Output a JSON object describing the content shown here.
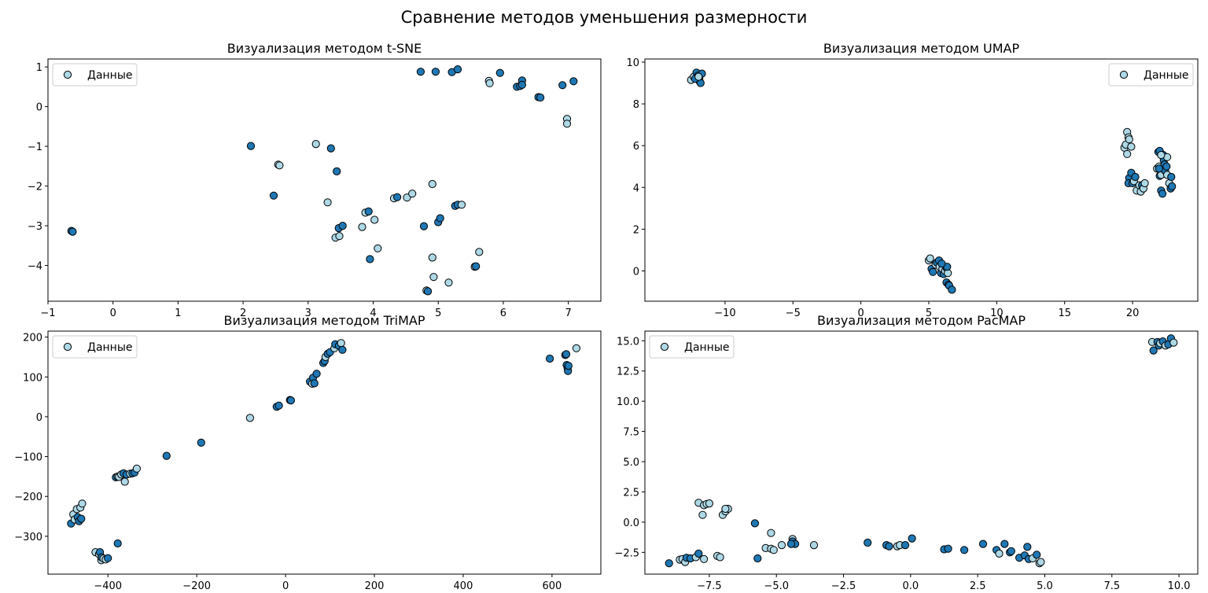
{
  "suptitle": "Сравнение методов уменьшения размерности",
  "colors": {
    "light": "#add8e6",
    "dark": "#1f77b4",
    "edge": "#000000"
  },
  "chart_data": [
    {
      "type": "scatter",
      "title": "Визуализация методом t-SNE",
      "legend": "Данные",
      "legend_loc": "upper-left",
      "xlim": [
        -1.0,
        7.5
      ],
      "ylim": [
        -4.9,
        1.2
      ],
      "xticks": [
        -1,
        0,
        1,
        2,
        3,
        4,
        5,
        6,
        7
      ],
      "yticks": [
        -4,
        -3,
        -2,
        -1,
        0,
        1
      ],
      "points": [
        [
          -0.64,
          -3.13,
          1
        ],
        [
          -0.62,
          -3.15,
          1
        ],
        [
          2.12,
          -0.99,
          1
        ],
        [
          2.47,
          -2.24,
          1
        ],
        [
          2.54,
          -1.46,
          0
        ],
        [
          2.56,
          -1.48,
          0
        ],
        [
          3.12,
          -0.94,
          0
        ],
        [
          3.3,
          -2.41,
          0
        ],
        [
          3.35,
          -1.05,
          1
        ],
        [
          3.44,
          -1.63,
          1
        ],
        [
          3.42,
          -3.3,
          0
        ],
        [
          3.48,
          -3.26,
          0
        ],
        [
          3.47,
          -3.06,
          1
        ],
        [
          3.53,
          -3.0,
          1
        ],
        [
          3.83,
          -3.03,
          0
        ],
        [
          3.88,
          -2.67,
          0
        ],
        [
          3.93,
          -2.64,
          1
        ],
        [
          3.95,
          -3.84,
          1
        ],
        [
          4.02,
          -2.85,
          0
        ],
        [
          4.07,
          -3.57,
          0
        ],
        [
          4.32,
          -2.31,
          0
        ],
        [
          4.37,
          -2.28,
          1
        ],
        [
          4.52,
          -2.29,
          0
        ],
        [
          4.6,
          -2.19,
          0
        ],
        [
          4.73,
          0.88,
          1
        ],
        [
          4.78,
          -3.01,
          1
        ],
        [
          4.82,
          -4.63,
          0
        ],
        [
          4.84,
          -4.65,
          1
        ],
        [
          4.91,
          -1.95,
          0
        ],
        [
          4.91,
          -3.8,
          0
        ],
        [
          4.93,
          -4.29,
          0
        ],
        [
          4.96,
          0.88,
          1
        ],
        [
          5.0,
          -2.91,
          1
        ],
        [
          5.03,
          -2.81,
          1
        ],
        [
          5.16,
          -4.43,
          0
        ],
        [
          5.21,
          0.87,
          1
        ],
        [
          5.26,
          -2.5,
          1
        ],
        [
          5.3,
          -2.47,
          1
        ],
        [
          5.3,
          0.94,
          1
        ],
        [
          5.36,
          -2.47,
          0
        ],
        [
          5.56,
          -4.03,
          0
        ],
        [
          5.58,
          -4.02,
          1
        ],
        [
          5.63,
          -3.66,
          0
        ],
        [
          5.78,
          0.65,
          0
        ],
        [
          5.79,
          0.59,
          0
        ],
        [
          5.95,
          0.85,
          1
        ],
        [
          6.21,
          0.5,
          1
        ],
        [
          6.26,
          0.52,
          1
        ],
        [
          6.29,
          0.66,
          1
        ],
        [
          6.29,
          0.55,
          1
        ],
        [
          6.54,
          0.24,
          1
        ],
        [
          6.57,
          0.23,
          1
        ],
        [
          6.91,
          0.54,
          1
        ],
        [
          6.98,
          -0.31,
          0
        ],
        [
          6.98,
          -0.43,
          0
        ],
        [
          7.08,
          0.64,
          1
        ]
      ]
    },
    {
      "type": "scatter",
      "title": "Визуализация методом UMAP",
      "legend": "Данные",
      "legend_loc": "upper-right",
      "xlim": [
        -15.9,
        24.8
      ],
      "ylim": [
        -1.45,
        10.15
      ],
      "xticks": [
        -10,
        -5,
        0,
        5,
        10,
        15,
        20
      ],
      "yticks": [
        0,
        2,
        4,
        6,
        8,
        10
      ],
      "points": [
        [
          -12.5,
          9.15,
          0
        ],
        [
          -12.3,
          9.3,
          0
        ],
        [
          -12.1,
          9.5,
          1
        ],
        [
          -12.0,
          9.35,
          1
        ],
        [
          -11.9,
          9.2,
          0
        ],
        [
          -11.85,
          9.05,
          1
        ],
        [
          -11.8,
          9.0,
          1
        ],
        [
          -11.7,
          9.45,
          1
        ],
        [
          -12.2,
          9.2,
          1
        ],
        [
          -11.95,
          9.3,
          0
        ],
        [
          5.0,
          0.5,
          0
        ],
        [
          5.1,
          0.6,
          0
        ],
        [
          5.2,
          0.1,
          1
        ],
        [
          5.3,
          -0.05,
          1
        ],
        [
          5.5,
          0.3,
          0
        ],
        [
          5.6,
          0.4,
          1
        ],
        [
          5.75,
          0.5,
          1
        ],
        [
          5.8,
          0.2,
          0
        ],
        [
          5.9,
          -0.1,
          1
        ],
        [
          6.0,
          0.1,
          0
        ],
        [
          6.1,
          -0.15,
          1
        ],
        [
          6.2,
          0.0,
          0
        ],
        [
          6.3,
          0.15,
          1
        ],
        [
          6.4,
          -0.1,
          0
        ],
        [
          6.3,
          -0.55,
          1
        ],
        [
          6.45,
          -0.65,
          1
        ],
        [
          6.5,
          -0.7,
          1
        ],
        [
          6.7,
          -0.9,
          1
        ],
        [
          6.35,
          0.2,
          1
        ],
        [
          5.95,
          0.35,
          1
        ],
        [
          19.4,
          5.9,
          0
        ],
        [
          19.5,
          6.05,
          0
        ],
        [
          19.6,
          5.6,
          0
        ],
        [
          19.6,
          6.65,
          0
        ],
        [
          19.7,
          6.4,
          0
        ],
        [
          19.75,
          6.3,
          0
        ],
        [
          19.9,
          5.95,
          0
        ],
        [
          19.75,
          4.45,
          1
        ],
        [
          19.7,
          4.2,
          1
        ],
        [
          19.9,
          4.7,
          1
        ],
        [
          20.0,
          4.2,
          1
        ],
        [
          20.1,
          4.3,
          0
        ],
        [
          20.2,
          4.5,
          1
        ],
        [
          20.3,
          3.85,
          0
        ],
        [
          20.5,
          4.1,
          0
        ],
        [
          20.6,
          3.8,
          0
        ],
        [
          20.7,
          4.1,
          1
        ],
        [
          20.8,
          3.95,
          0
        ],
        [
          20.9,
          4.2,
          0
        ],
        [
          21.8,
          4.9,
          0
        ],
        [
          21.9,
          5.7,
          1
        ],
        [
          21.95,
          5.0,
          0
        ],
        [
          22.0,
          5.75,
          1
        ],
        [
          22.0,
          4.55,
          1
        ],
        [
          22.1,
          4.6,
          0
        ],
        [
          22.1,
          3.85,
          1
        ],
        [
          22.2,
          3.7,
          1
        ],
        [
          22.25,
          5.55,
          1
        ],
        [
          22.3,
          5.3,
          1
        ],
        [
          22.35,
          5.1,
          1
        ],
        [
          22.4,
          4.8,
          1
        ],
        [
          22.5,
          5.0,
          1
        ],
        [
          22.55,
          5.45,
          0
        ],
        [
          22.55,
          4.6,
          0
        ],
        [
          22.7,
          4.2,
          0
        ],
        [
          22.8,
          3.95,
          1
        ],
        [
          22.85,
          4.5,
          1
        ],
        [
          22.9,
          4.05,
          1
        ],
        [
          21.95,
          4.9,
          1
        ],
        [
          22.1,
          5.55,
          0
        ]
      ]
    },
    {
      "type": "scatter",
      "title": "Визуализация методом TriMAP",
      "legend": "Данные",
      "legend_loc": "upper-left",
      "xlim": [
        -535,
        710
      ],
      "ylim": [
        -395,
        215
      ],
      "xticks": [
        -400,
        -200,
        0,
        200,
        400,
        600
      ],
      "yticks": [
        -300,
        -200,
        -100,
        0,
        100,
        200
      ],
      "points": [
        [
          -483,
          -268,
          1
        ],
        [
          -478,
          -245,
          0
        ],
        [
          -475,
          -258,
          0
        ],
        [
          -470,
          -232,
          0
        ],
        [
          -468,
          -252,
          1
        ],
        [
          -465,
          -262,
          1
        ],
        [
          -462,
          -228,
          0
        ],
        [
          -458,
          -218,
          0
        ],
        [
          -460,
          -256,
          1
        ],
        [
          -428,
          -340,
          0
        ],
        [
          -420,
          -345,
          0
        ],
        [
          -418,
          -340,
          1
        ],
        [
          -415,
          -360,
          0
        ],
        [
          -414,
          -353,
          1
        ],
        [
          -410,
          -356,
          0
        ],
        [
          -405,
          -358,
          0
        ],
        [
          -400,
          -355,
          1
        ],
        [
          -382,
          -152,
          1
        ],
        [
          -378,
          -150,
          0
        ],
        [
          -375,
          -151,
          0
        ],
        [
          -370,
          -145,
          0
        ],
        [
          -365,
          -142,
          1
        ],
        [
          -362,
          -163,
          0
        ],
        [
          -358,
          -145,
          1
        ],
        [
          -350,
          -143,
          0
        ],
        [
          -345,
          -142,
          1
        ],
        [
          -340,
          -140,
          1
        ],
        [
          -335,
          -130,
          0
        ],
        [
          -378,
          -318,
          1
        ],
        [
          -268,
          -98,
          1
        ],
        [
          -190,
          -65,
          1
        ],
        [
          -80,
          -3,
          0
        ],
        [
          -20,
          25,
          1
        ],
        [
          -15,
          28,
          1
        ],
        [
          10,
          42,
          1
        ],
        [
          12,
          41,
          1
        ],
        [
          55,
          88,
          1
        ],
        [
          60,
          83,
          0
        ],
        [
          62,
          98,
          1
        ],
        [
          65,
          84,
          1
        ],
        [
          70,
          108,
          1
        ],
        [
          85,
          135,
          1
        ],
        [
          88,
          140,
          1
        ],
        [
          90,
          150,
          0
        ],
        [
          95,
          158,
          1
        ],
        [
          100,
          162,
          1
        ],
        [
          110,
          172,
          0
        ],
        [
          112,
          182,
          1
        ],
        [
          120,
          178,
          1
        ],
        [
          125,
          185,
          0
        ],
        [
          128,
          168,
          1
        ],
        [
          595,
          146,
          1
        ],
        [
          630,
          155,
          1
        ],
        [
          632,
          157,
          1
        ],
        [
          633,
          130,
          1
        ],
        [
          635,
          122,
          1
        ],
        [
          636,
          115,
          1
        ],
        [
          637,
          128,
          1
        ],
        [
          655,
          172,
          0
        ]
      ]
    },
    {
      "type": "scatter",
      "title": "Визуализация методом PacMAP",
      "legend": "Данные",
      "legend_loc": "upper-left",
      "xlim": [
        -9.9,
        10.7
      ],
      "ylim": [
        -4.3,
        15.8
      ],
      "xticks": [
        -7.5,
        -5.0,
        -2.5,
        0.0,
        2.5,
        5.0,
        7.5,
        10.0
      ],
      "yticks": [
        -2.5,
        0.0,
        2.5,
        5.0,
        7.5,
        10.0,
        12.5,
        15.0
      ],
      "points": [
        [
          -9.0,
          -3.4,
          1
        ],
        [
          -8.6,
          -3.1,
          0
        ],
        [
          -8.5,
          -3.05,
          0
        ],
        [
          -8.4,
          -3.3,
          0
        ],
        [
          -8.35,
          -2.95,
          1
        ],
        [
          -8.2,
          -3.0,
          1
        ],
        [
          -8.0,
          -2.9,
          0
        ],
        [
          -7.9,
          -2.6,
          1
        ],
        [
          -7.9,
          1.6,
          0
        ],
        [
          -7.7,
          1.4,
          0
        ],
        [
          -7.75,
          0.6,
          0
        ],
        [
          -7.6,
          1.5,
          0
        ],
        [
          -7.5,
          1.55,
          0
        ],
        [
          -7.7,
          -3.05,
          0
        ],
        [
          -7.2,
          -2.8,
          0
        ],
        [
          -7.1,
          -2.9,
          0
        ],
        [
          -7.0,
          0.6,
          0
        ],
        [
          -6.9,
          0.9,
          0
        ],
        [
          -6.8,
          1.1,
          0
        ],
        [
          -6.9,
          1.1,
          0
        ],
        [
          -5.8,
          -0.1,
          1
        ],
        [
          -5.7,
          -3.0,
          1
        ],
        [
          -5.2,
          -0.9,
          0
        ],
        [
          -5.4,
          -2.15,
          0
        ],
        [
          -5.2,
          -2.2,
          0
        ],
        [
          -5.1,
          -2.3,
          0
        ],
        [
          -4.8,
          -1.9,
          0
        ],
        [
          -4.4,
          -1.4,
          0
        ],
        [
          -4.4,
          -1.6,
          1
        ],
        [
          -4.3,
          -1.8,
          1
        ],
        [
          -4.45,
          -1.8,
          1
        ],
        [
          -3.6,
          -1.9,
          0
        ],
        [
          -1.6,
          -1.7,
          1
        ],
        [
          -0.9,
          -1.9,
          1
        ],
        [
          -0.8,
          -2.0,
          1
        ],
        [
          -0.5,
          -2.0,
          0
        ],
        [
          -0.4,
          -1.9,
          0
        ],
        [
          -0.2,
          -1.9,
          1
        ],
        [
          0.05,
          -1.35,
          1
        ],
        [
          1.25,
          -2.25,
          1
        ],
        [
          1.4,
          -2.2,
          1
        ],
        [
          2.0,
          -2.3,
          1
        ],
        [
          2.7,
          -1.8,
          1
        ],
        [
          3.2,
          -2.3,
          1
        ],
        [
          3.3,
          -2.6,
          0
        ],
        [
          3.5,
          -1.8,
          1
        ],
        [
          3.7,
          -2.5,
          1
        ],
        [
          3.75,
          -2.4,
          1
        ],
        [
          4.05,
          -2.95,
          1
        ],
        [
          4.25,
          -2.75,
          1
        ],
        [
          4.35,
          -2.05,
          1
        ],
        [
          4.4,
          -3.05,
          1
        ],
        [
          4.55,
          -3.0,
          0
        ],
        [
          4.7,
          -2.7,
          1
        ],
        [
          4.8,
          -3.4,
          0
        ],
        [
          4.85,
          -3.3,
          0
        ],
        [
          9.0,
          14.9,
          0
        ],
        [
          9.05,
          14.2,
          1
        ],
        [
          9.2,
          14.9,
          1
        ],
        [
          9.25,
          14.6,
          1
        ],
        [
          9.3,
          14.8,
          0
        ],
        [
          9.4,
          14.95,
          1
        ],
        [
          9.5,
          14.6,
          0
        ],
        [
          9.6,
          14.7,
          1
        ],
        [
          9.7,
          15.2,
          1
        ],
        [
          9.8,
          14.85,
          0
        ]
      ]
    }
  ]
}
